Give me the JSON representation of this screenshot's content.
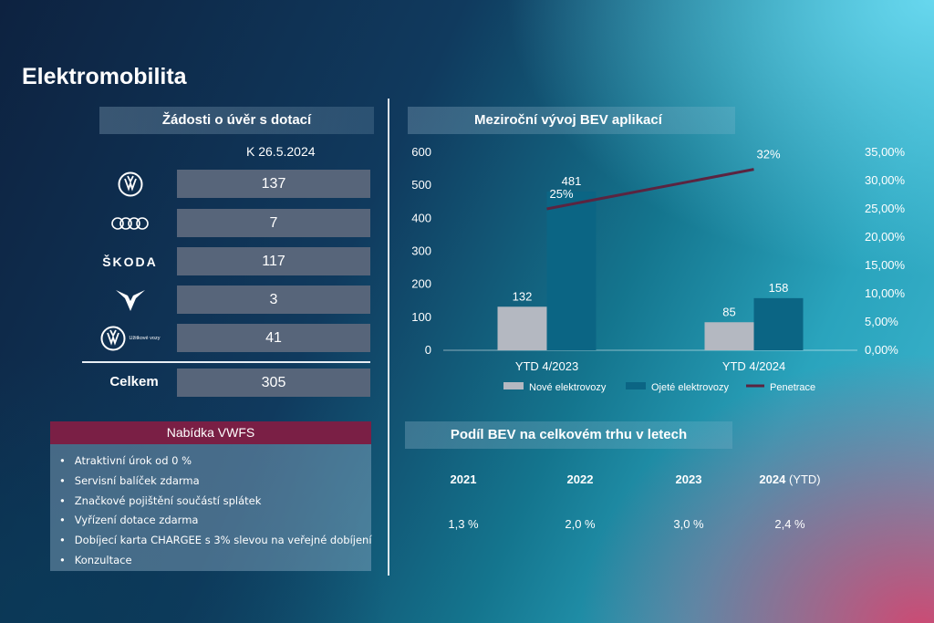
{
  "page": {
    "title": "Elektromobilita"
  },
  "loans": {
    "title": "Žádosti o úvěr s dotací",
    "date": "K 26.5.2024",
    "brands": [
      {
        "icon": "vw-logo",
        "value": "137"
      },
      {
        "icon": "audi-logo",
        "value": "7"
      },
      {
        "icon": "skoda-logo",
        "name": "ŠKODA",
        "value": "117"
      },
      {
        "icon": "cupra-logo",
        "value": "3"
      },
      {
        "icon": "vw-commercial-logo",
        "name": "Užitkové vozy",
        "value": "41"
      }
    ],
    "total_label": "Celkem",
    "total_value": "305"
  },
  "offer": {
    "title": "Nabídka VWFS",
    "items": [
      "Atraktivní úrok od 0 %",
      "Servisní balíček zdarma",
      "Značkové pojištění součástí splátek",
      "Vyřízení dotace zdarma",
      "Dobíjecí karta CHARGEE s 3% slevou na veřejné dobíjení",
      "Konzultace"
    ]
  },
  "share": {
    "title": "Podíl BEV na celkovém trhu v letech",
    "years": [
      {
        "year": "2021",
        "suffix": "",
        "value": "1,3 %"
      },
      {
        "year": "2022",
        "suffix": "",
        "value": "2,0 %"
      },
      {
        "year": "2023",
        "suffix": "",
        "value": "3,0 %"
      },
      {
        "year": "2024",
        "suffix": "(YTD)",
        "value": "2,4 %"
      }
    ]
  },
  "chart_data": {
    "type": "bar",
    "title": "Meziroční vývoj BEV aplikací",
    "categories": [
      "YTD 4/2023",
      "YTD 4/2024"
    ],
    "series": [
      {
        "name": "Nové elektrovozy",
        "values": [
          132,
          85
        ],
        "color": "#b4b8c1"
      },
      {
        "name": "Ojeté elektrovozy",
        "values": [
          481,
          158
        ],
        "color": "#0b6584"
      }
    ],
    "line_series": {
      "name": "Penetrace",
      "values": [
        25,
        32
      ],
      "labels": [
        "25%",
        "32%"
      ],
      "color": "#5b2440"
    },
    "ylim": [
      0,
      600
    ],
    "yticks": [
      "0",
      "100",
      "200",
      "300",
      "400",
      "500",
      "600"
    ],
    "y2lim": [
      0,
      35
    ],
    "y2ticks": [
      "0,00%",
      "5,00%",
      "10,00%",
      "15,00%",
      "20,00%",
      "25,00%",
      "30,00%",
      "35,00%"
    ],
    "legend_position": "bottom"
  }
}
